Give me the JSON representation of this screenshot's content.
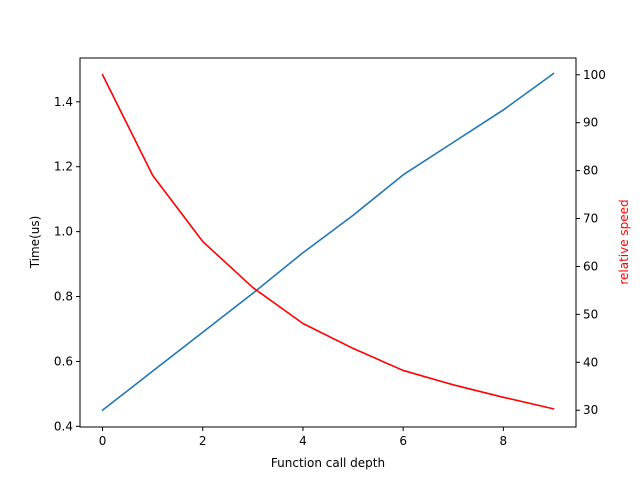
{
  "chart_data": {
    "type": "line",
    "xlabel": "Function call depth",
    "ylabel_left": "Time(us)",
    "ylabel_right": "relative speed",
    "x": [
      0,
      1,
      2,
      3,
      4,
      5,
      6,
      7,
      8,
      9
    ],
    "xlim": [
      -0.45,
      9.45
    ],
    "xticks": [
      0,
      2,
      4,
      6,
      8
    ],
    "ylim_left": [
      0.398,
      1.535
    ],
    "yticks_left": [
      0.4,
      0.6,
      0.8,
      1.0,
      1.2,
      1.4
    ],
    "ylim_right": [
      26.5,
      103.5
    ],
    "yticks_right": [
      30,
      40,
      50,
      60,
      70,
      80,
      90,
      100
    ],
    "grid": false,
    "series": [
      {
        "axis": "left",
        "color": "#1f77b4",
        "values": [
          0.45,
          0.57,
          0.69,
          0.81,
          0.935,
          1.05,
          1.175,
          1.275,
          1.375,
          1.487
        ]
      },
      {
        "axis": "right",
        "color": "#ff0000",
        "values": [
          100.0,
          79.0,
          65.2,
          55.6,
          48.1,
          42.9,
          38.3,
          35.3,
          32.7,
          30.3
        ]
      }
    ],
    "colors": {
      "right_axis_label": "#ff0000"
    }
  }
}
